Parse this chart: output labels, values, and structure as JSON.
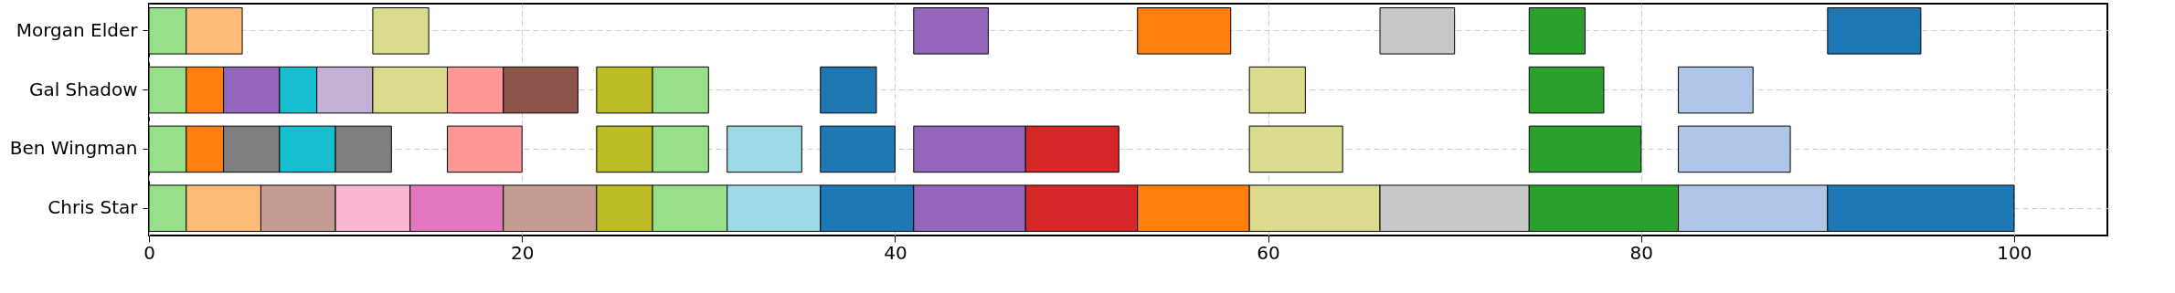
{
  "chart_data": {
    "type": "bar",
    "orientation": "horizontal",
    "categories": [
      "Morgan Elder",
      "Gal Shadow",
      "Ben Wingman",
      "Chris Star"
    ],
    "xlim": [
      0,
      105
    ],
    "xticks": [
      0,
      20,
      40,
      60,
      80,
      100
    ],
    "grid": true,
    "series": [
      {
        "values": [
          2,
          2,
          2,
          2
        ],
        "base": [
          0,
          0,
          0,
          0
        ],
        "colors": [
          "#98df8a",
          "#98df8a",
          "#98df8a",
          "#98df8a"
        ]
      },
      {
        "values": [
          3,
          2,
          2,
          4
        ],
        "base": [
          2,
          2,
          2,
          2
        ],
        "colors": [
          "#ffbb78",
          "#ff7f0e",
          "#ff7f0e",
          "#ffbb78"
        ]
      },
      {
        "values": [
          3,
          3,
          3,
          4
        ],
        "base": [
          12,
          4,
          4,
          6
        ],
        "colors": [
          "#dbdb8d",
          "#9467bd",
          "#7f7f7f",
          "#c49c94"
        ]
      },
      {
        "values": [
          4,
          2,
          3,
          4
        ],
        "base": [
          41,
          7,
          7,
          10
        ],
        "colors": [
          "#9467bd",
          "#17becf",
          "#17becf",
          "#f7b6d2"
        ]
      },
      {
        "values": [
          5,
          3,
          3,
          5
        ],
        "base": [
          53,
          9,
          10,
          14
        ],
        "colors": [
          "#ff7f0e",
          "#c5b0d5",
          "#7f7f7f",
          "#e377c2"
        ]
      },
      {
        "values": [
          4,
          4,
          4,
          5
        ],
        "base": [
          66,
          12,
          16,
          19
        ],
        "colors": [
          "#c7c7c7",
          "#dbdb8d",
          "#ff9896",
          "#c49c94"
        ]
      },
      {
        "values": [
          3,
          3,
          3,
          3
        ],
        "base": [
          74,
          16,
          24,
          24
        ],
        "colors": [
          "#2ca02c",
          "#ff9896",
          "#bcbd22",
          "#bcbd22"
        ]
      },
      {
        "values": [
          5,
          4,
          3,
          4
        ],
        "base": [
          90,
          19,
          27,
          27
        ],
        "colors": [
          "#1f77b4",
          "#8c564b",
          "#98df8a",
          "#98df8a"
        ]
      },
      {
        "values": [
          null,
          3,
          4,
          5
        ],
        "base": [
          null,
          24,
          31,
          31
        ],
        "colors": [
          null,
          "#bcbd22",
          "#9edae5",
          "#9edae5"
        ]
      },
      {
        "values": [
          null,
          3,
          4,
          5
        ],
        "base": [
          null,
          27,
          36,
          36
        ],
        "colors": [
          null,
          "#98df8a",
          "#1f77b4",
          "#1f77b4"
        ]
      },
      {
        "values": [
          null,
          3,
          6,
          6
        ],
        "base": [
          null,
          36,
          41,
          41
        ],
        "colors": [
          null,
          "#1f77b4",
          "#9467bd",
          "#9467bd"
        ]
      },
      {
        "values": [
          null,
          3,
          5,
          6
        ],
        "base": [
          null,
          59,
          47,
          47
        ],
        "colors": [
          null,
          "#dbdb8d",
          "#d62728",
          "#d62728"
        ]
      },
      {
        "values": [
          null,
          4,
          5,
          6
        ],
        "base": [
          null,
          74,
          59,
          53
        ],
        "colors": [
          null,
          "#2ca02c",
          "#dbdb8d",
          "#ff7f0e"
        ]
      },
      {
        "values": [
          null,
          4,
          6,
          7
        ],
        "base": [
          null,
          82,
          74,
          59
        ],
        "colors": [
          null,
          "#aec7e8",
          "#2ca02c",
          "#dbdb8d"
        ]
      },
      {
        "values": [
          null,
          null,
          6,
          8
        ],
        "base": [
          null,
          null,
          82,
          66
        ],
        "colors": [
          null,
          null,
          "#aec7e8",
          "#c7c7c7"
        ]
      },
      {
        "values": [
          null,
          null,
          null,
          8
        ],
        "base": [
          null,
          null,
          null,
          74
        ],
        "colors": [
          null,
          null,
          null,
          "#2ca02c"
        ]
      },
      {
        "values": [
          null,
          null,
          null,
          8
        ],
        "base": [
          null,
          null,
          null,
          82
        ],
        "colors": [
          null,
          null,
          null,
          "#aec7e8"
        ]
      },
      {
        "values": [
          null,
          null,
          null,
          10
        ],
        "base": [
          null,
          null,
          null,
          90
        ],
        "colors": [
          null,
          null,
          null,
          "#1f77b4"
        ]
      }
    ]
  }
}
